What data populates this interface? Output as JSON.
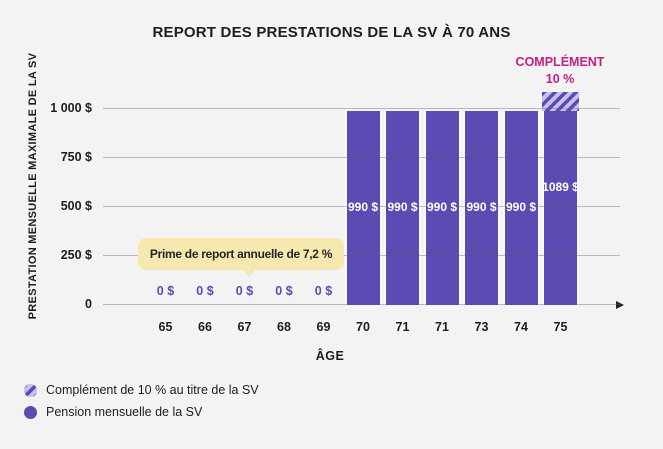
{
  "chart_data": {
    "type": "bar",
    "title": "REPORT DES PRESTATIONS DE LA SV À 70 ANS",
    "xlabel": "ÂGE",
    "ylabel": "PRESTATION MENSUELLE MAXIMALE DE LA SV",
    "categories": [
      "65",
      "66",
      "67",
      "68",
      "69",
      "70",
      "71",
      "71",
      "73",
      "74",
      "75"
    ],
    "series": [
      {
        "name": "Pension mensuelle de la SV",
        "values": [
          0,
          0,
          0,
          0,
          0,
          990,
          990,
          990,
          990,
          990,
          990
        ]
      },
      {
        "name": "Complément de 10 % au titre de la SV",
        "values": [
          0,
          0,
          0,
          0,
          0,
          0,
          0,
          0,
          0,
          0,
          99
        ]
      }
    ],
    "bar_value_labels": [
      "0 $",
      "0 $",
      "0 $",
      "0 $",
      "0 $",
      "990 $",
      "990 $",
      "990 $",
      "990 $",
      "990 $",
      "1089 $"
    ],
    "y_ticks": [
      {
        "value": 1000,
        "label": "1 000 $"
      },
      {
        "value": 750,
        "label": "750 $"
      },
      {
        "value": 500,
        "label": "500 $"
      },
      {
        "value": 250,
        "label": "250 $"
      },
      {
        "value": 0,
        "label": "0"
      }
    ],
    "ylim": [
      0,
      1150
    ],
    "grid": true,
    "annotation": {
      "line1": "COMPLÉMENT",
      "line2": "10 %"
    },
    "callout": {
      "text": "Prime de report annuelle de 7,2 %"
    },
    "legend": [
      {
        "label": "Complément de 10 % au titre de la SV",
        "swatch": "hatched"
      },
      {
        "label": "Pension mensuelle de la SV",
        "swatch": "solid"
      }
    ],
    "legend_position": "bottom-left",
    "colors": {
      "background": "#f4f3f3",
      "bar": "#5a4cb2",
      "hatch_bg": "#c6c1ee",
      "hatch_stripe": "#5a4cb2",
      "annotation": "#c12181",
      "callout_bg": "#f6e9b0",
      "callout_text": "#252525",
      "text": "#1d1d1d",
      "zero_label": "#5a4cb2"
    }
  }
}
